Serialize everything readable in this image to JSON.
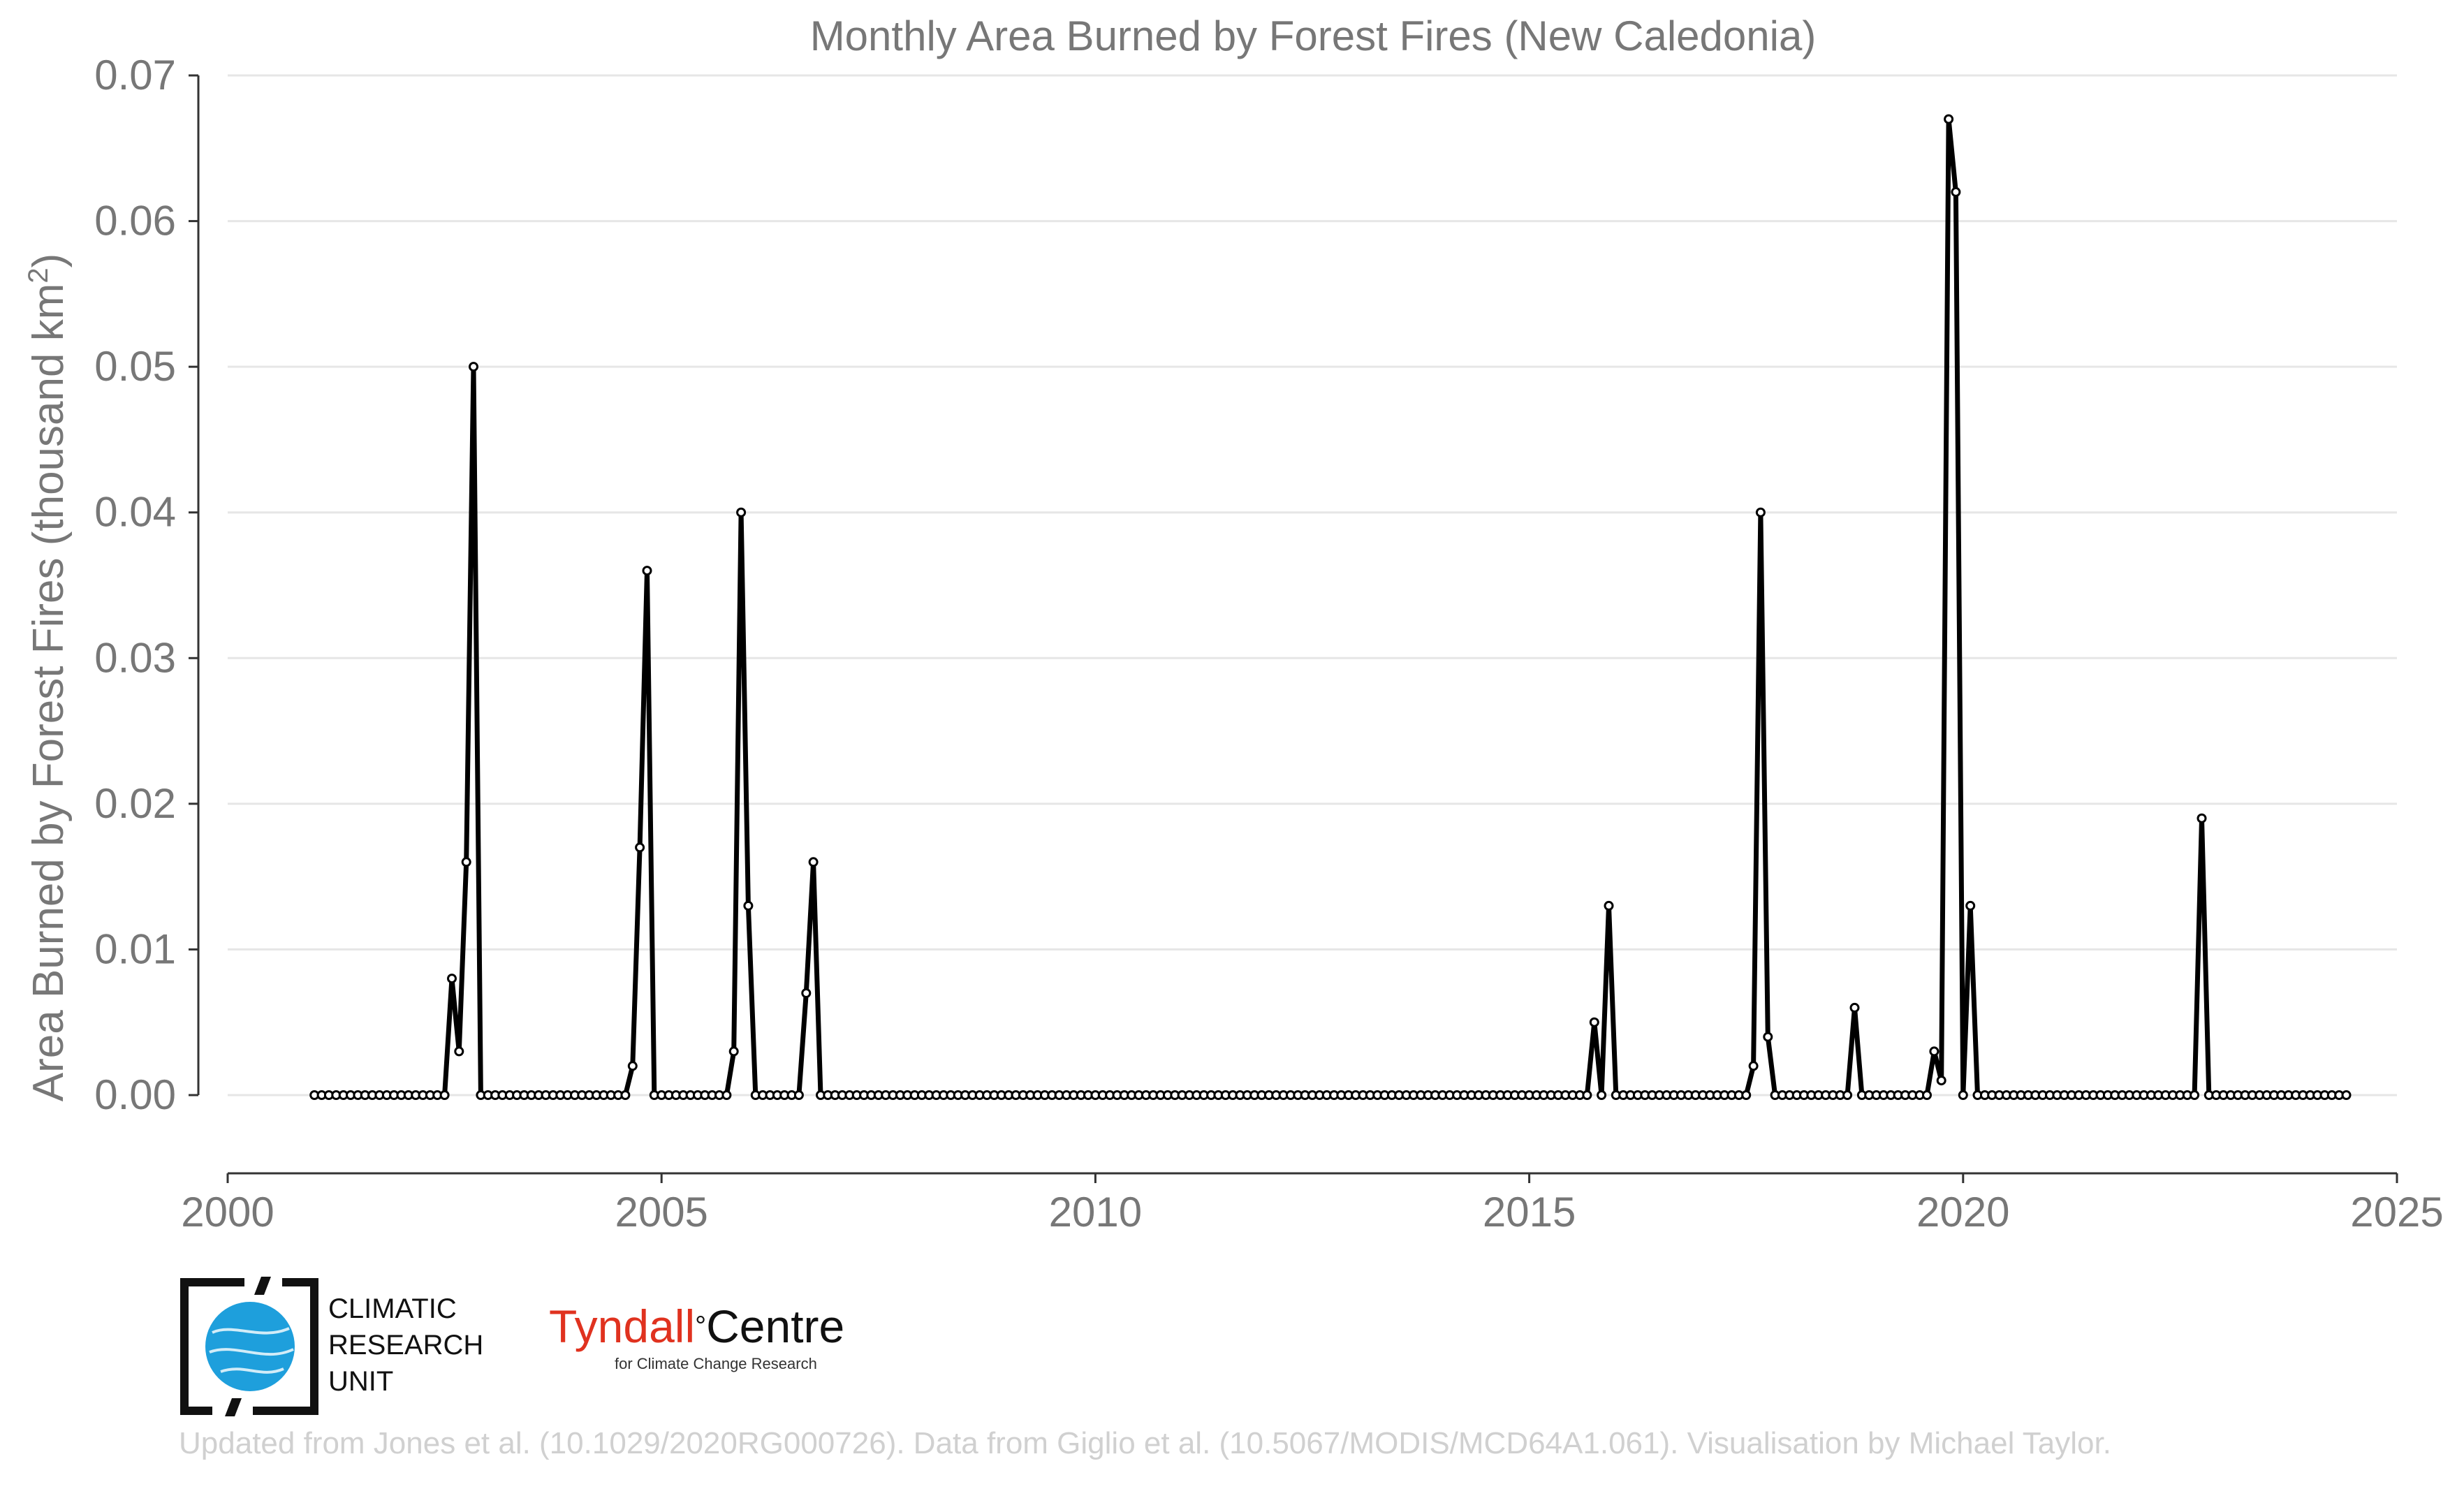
{
  "chart_data": {
    "type": "line",
    "title": "Monthly Area Burned by Forest Fires (New Caledonia)",
    "ylabel_main": "Area Burned by Forest Fires (thousand km",
    "ylabel_sup": "2",
    "ylabel_close": ")",
    "xlim": [
      2000,
      2025
    ],
    "ylim": [
      -0.005,
      0.07
    ],
    "xticks": [
      2000,
      2005,
      2010,
      2015,
      2020,
      2025
    ],
    "xtick_labels": [
      "2000",
      "2005",
      "2010",
      "2015",
      "2020",
      "2025"
    ],
    "yticks": [
      0.0,
      0.01,
      0.02,
      0.03,
      0.04,
      0.05,
      0.06,
      0.07
    ],
    "ytick_labels": [
      "0.00",
      "0.01",
      "0.02",
      "0.03",
      "0.04",
      "0.05",
      "0.06",
      "0.07"
    ],
    "grid": "horizontal",
    "series": [
      {
        "name": "Monthly area burned",
        "start": "2001-01",
        "values": [
          0,
          0,
          0,
          0,
          0,
          0,
          0,
          0,
          0,
          0,
          0,
          0,
          0,
          0,
          0,
          0,
          0,
          0,
          0,
          0.008,
          0.003,
          0.016,
          0.05,
          0,
          0,
          0,
          0,
          0,
          0,
          0,
          0,
          0,
          0,
          0,
          0,
          0,
          0,
          0,
          0,
          0,
          0,
          0,
          0,
          0,
          0.002,
          0.017,
          0.036,
          0,
          0,
          0,
          0,
          0,
          0,
          0,
          0,
          0,
          0,
          0,
          0.003,
          0.04,
          0.013,
          0,
          0,
          0,
          0,
          0,
          0,
          0,
          0.007,
          0.016,
          0,
          0,
          0,
          0,
          0,
          0,
          0,
          0,
          0,
          0,
          0,
          0,
          0,
          0,
          0,
          0,
          0,
          0,
          0,
          0,
          0,
          0,
          0,
          0,
          0,
          0,
          0,
          0,
          0,
          0,
          0,
          0,
          0,
          0,
          0,
          0,
          0,
          0,
          0,
          0,
          0,
          0,
          0,
          0,
          0,
          0,
          0,
          0,
          0,
          0,
          0,
          0,
          0,
          0,
          0,
          0,
          0,
          0,
          0,
          0,
          0,
          0,
          0,
          0,
          0,
          0,
          0,
          0,
          0,
          0,
          0,
          0,
          0,
          0,
          0,
          0,
          0,
          0,
          0,
          0,
          0,
          0,
          0,
          0,
          0,
          0,
          0,
          0,
          0,
          0,
          0,
          0,
          0,
          0,
          0,
          0,
          0,
          0,
          0,
          0,
          0,
          0,
          0,
          0,
          0,
          0,
          0,
          0.005,
          0,
          0.013,
          0,
          0,
          0,
          0,
          0,
          0,
          0,
          0,
          0,
          0,
          0,
          0,
          0,
          0,
          0,
          0,
          0,
          0,
          0,
          0.002,
          0.04,
          0.004,
          0,
          0,
          0,
          0,
          0,
          0,
          0,
          0,
          0,
          0,
          0,
          0.006,
          0,
          0,
          0,
          0,
          0,
          0,
          0,
          0,
          0,
          0,
          0.003,
          0.001,
          0.067,
          0.062,
          0,
          0.013,
          0,
          0,
          0,
          0,
          0,
          0,
          0,
          0,
          0,
          0,
          0,
          0,
          0,
          0,
          0,
          0,
          0,
          0,
          0,
          0,
          0,
          0,
          0,
          0,
          0,
          0,
          0,
          0,
          0,
          0,
          0,
          0.019,
          0,
          0,
          0,
          0,
          0,
          0,
          0,
          0,
          0,
          0,
          0,
          0,
          0,
          0,
          0,
          0,
          0,
          0,
          0,
          0
        ]
      }
    ]
  },
  "logos": {
    "cru_line1": "CLIMATIC",
    "cru_line2": "RESEARCH",
    "cru_line3": "UNIT",
    "tyndall_main": "Tyndall",
    "tyndall_degree": "°",
    "tyndall_centre": "Centre",
    "tyndall_sub": "for Climate Change Research"
  },
  "credit": "Updated from Jones et al. (10.1029/2020RG000726). Data from Giglio et al. (10.5067/MODIS/MCD64A1.061). Visualisation by Michael Taylor.",
  "colors": {
    "line": "#000000",
    "marker_fill": "#ffffff",
    "grid": "#e6e6e6",
    "text": "#777777",
    "cru_blue": "#1e9fdc",
    "tyndall_red": "#e0321f"
  }
}
